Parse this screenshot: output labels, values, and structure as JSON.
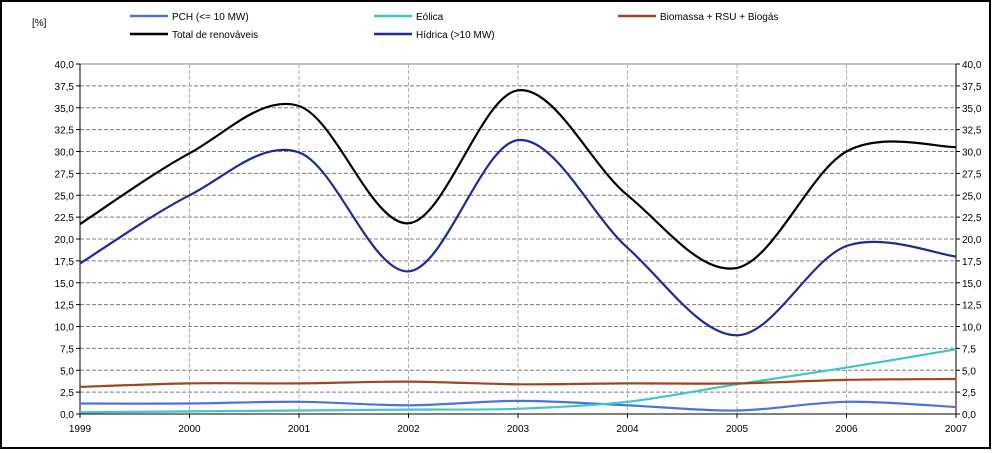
{
  "chart_data": {
    "type": "line",
    "unit_label": "[%]",
    "x": [
      "1999",
      "2000",
      "2001",
      "2002",
      "2003",
      "2004",
      "2005",
      "2006",
      "2007"
    ],
    "ylim": [
      0,
      40
    ],
    "yticks": [
      "0,0",
      "2,5",
      "5,0",
      "7,5",
      "10,0",
      "12,5",
      "15,0",
      "17,5",
      "20,0",
      "22,5",
      "25,0",
      "27,5",
      "30,0",
      "32,5",
      "35,0",
      "37,5",
      "40,0"
    ],
    "grid": true,
    "legend_position": "top",
    "series": [
      {
        "name": "PCH (<= 10 MW)",
        "color": "#4a74d9",
        "values": [
          1.2,
          1.2,
          1.4,
          1.0,
          1.5,
          1.0,
          0.4,
          1.4,
          0.8
        ]
      },
      {
        "name": "Eólica",
        "color": "#3fc6c8",
        "values": [
          0.2,
          0.3,
          0.4,
          0.5,
          0.6,
          1.4,
          3.4,
          5.3,
          7.4
        ]
      },
      {
        "name": "Biomassa + RSU + Biogás",
        "color": "#a0461c",
        "values": [
          3.1,
          3.5,
          3.5,
          3.7,
          3.4,
          3.5,
          3.5,
          3.9,
          4.0
        ]
      },
      {
        "name": "Total de renováveis",
        "color": "#000000",
        "values": [
          21.7,
          29.8,
          35.2,
          21.8,
          37.0,
          25.0,
          16.7,
          30.0,
          30.5
        ]
      },
      {
        "name": "Hídrica (>10 MW)",
        "color": "#1c2a96",
        "values": [
          17.2,
          25.0,
          29.9,
          16.3,
          31.3,
          19.0,
          9.0,
          19.2,
          18.0
        ]
      }
    ]
  }
}
